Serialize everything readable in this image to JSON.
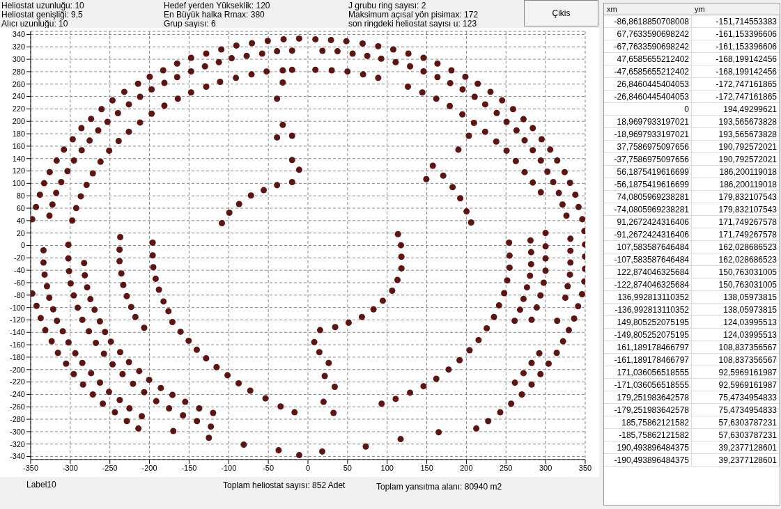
{
  "chart_data": [
    {
      "type": "scatter",
      "color": "#5c1414",
      "marker": "circle",
      "grid": true,
      "legend": false,
      "xlim": [
        -350,
        350
      ],
      "xticks": [
        -350,
        -300,
        -250,
        -200,
        -150,
        -100,
        -50,
        0,
        50,
        100,
        150,
        200,
        250,
        300,
        350
      ],
      "ylim": [
        -345,
        345
      ],
      "yticks": [
        -340,
        -320,
        -300,
        -280,
        -260,
        -240,
        -220,
        -200,
        -180,
        -160,
        -140,
        -120,
        -100,
        -80,
        -60,
        -40,
        -20,
        0,
        20,
        40,
        60,
        80,
        100,
        120,
        140,
        160,
        180,
        200,
        220,
        240,
        260,
        280,
        300,
        320,
        340
      ],
      "annotations": [
        "Heliostat uzunluğu: 10",
        "Heliostat genişliği: 9,5",
        "Alıcı uzunluğu: 10",
        "Hedef yerden Yükseklik: 120",
        "En Büyük halka Rmax: 380",
        "Grup sayısı: 6",
        "J grubu ring sayısı: 2",
        "Maksimum açısal yön pisimax: 172",
        "son ringdeki heliostat sayısı u: 123",
        "Çikis",
        "Label10",
        "Toplam heliostat sayısı: 852 Adet",
        "Toplam yansıtma alanı: 80940 m2"
      ],
      "x": [
        -30.7,
        -11.1,
        -50.7,
        -70.7,
        -90.3,
        -109.4,
        -128.4,
        -147.5,
        -165.1,
        -182.7,
        -199.7,
        -214.4,
        -231.8,
        -246.7,
        -260.5,
        -273.7,
        -285.9,
        -296.9,
        -308,
        -317.2,
        -326,
        -333,
        -338.3,
        -343.3,
        -348,
        -39,
        -20,
        -57.8,
        -77.3,
        -96.3,
        -112.4,
        -130,
        -147.5,
        -165.1,
        -181.2,
        -197.3,
        -211.9,
        -226,
        -239.8,
        -253,
        -264.7,
        -275.6,
        -285.6,
        -295.3,
        -303.5,
        -311.4,
        -317.8,
        -322.5,
        -326.3,
        -31.8,
        -20,
        -52.2,
        -71.2,
        -90.9,
        -110.9,
        -128.4,
        -147.5,
        -164.2,
        -181.2,
        -197.3,
        -211.9,
        -226,
        -238.9,
        -250.9,
        -261.8,
        -271.5,
        -279.4,
        -286.7,
        -292.5,
        -297.5,
        -31.8,
        -39,
        -31.8,
        -20,
        -39,
        -20,
        -11.1,
        -20,
        -39,
        -55.8,
        -71.9,
        -86.9,
        -99.2,
        -108.6,
        9.4,
        29.1,
        48.5,
        69,
        88.7,
        107.7,
        126.8,
        145.9,
        163.5,
        181.1,
        198.7,
        214.3,
        230.4,
        245.1,
        258.9,
        272.1,
        283.8,
        295,
        305.8,
        314.6,
        324,
        330.8,
        337.5,
        341.6,
        346.3,
        18.3,
        37.3,
        56.4,
        74.9,
        92.5,
        110.7,
        128.9,
        145.9,
        163.5,
        179.6,
        195.2,
        210.4,
        223.7,
        238.3,
        250.7,
        263.3,
        273.5,
        283.8,
        294,
        302.3,
        309.6,
        316.7,
        321.3,
        326.3,
        9.4,
        30,
        49.9,
        69.6,
        88.7,
        126.2,
        144.4,
        162,
        179,
        194.9,
        209.6,
        223.7,
        237.7,
        250.7,
        262.4,
        273.5,
        283.8,
        294,
        203.1,
        189.9,
        149.4,
        157.6,
        170.8,
        182.6,
        192.2,
        200.2,
        206,
        -347.9,
        -342.6,
        -337.3,
        -331.5,
        -323.5,
        -315.6,
        -305.3,
        -295.6,
        -283.9,
        -271.5,
        -258.9,
        -243.7,
        -228.6,
        -214,
        -333.8,
        -333.8,
        -332.4,
        -329.4,
        -326.5,
        -321.5,
        -316.8,
        -309.5,
        -302.2,
        -293.6,
        -284.8,
        -273.7,
        -262.5,
        -251.1,
        -237.6,
        -225.3,
        -209.7,
        -302.4,
        -302.4,
        -301.5,
        -299.5,
        -295.6,
        -290.6,
        -284.8,
        -276.5,
        -267.7,
        -257.5,
        -246.6,
        -234,
        -220.8,
        -206.7,
        -191.5,
        -175.3,
        -157.7,
        -140.1,
        -122.5,
        -282.5,
        -281.6,
        -278.7,
        -274.6,
        -269.3,
        -262.6,
        -256.1,
        -248.7,
        -237,
        -225.9,
        -213,
        -200.4,
        -185.7,
        -171,
        -154.9,
        -137.3,
        -119.7,
        -236.9,
        -237.8,
        -237.8,
        -235.5,
        -233.1,
        -228.7,
        -223.1,
        -217.8,
        -206.7,
        -196,
        -196,
        -195.2,
        -192.2,
        -188.1,
        -182.3,
        -176.1,
        -171.1,
        -160.8,
        -150.6,
        -140.3,
        -128.5,
        -115.3,
        -101.5,
        -87.5,
        -72.8,
        -53.6,
        -34.5,
        -16.9,
        348.9,
        349.8,
        349.8,
        349.8,
        348.9,
        346,
        341,
        336,
        329.3,
        322,
        314,
        303.8,
        293.5,
        282.3,
        270,
        256.5,
        242.7,
        227.5,
        212.5,
        331.3,
        331.3,
        331.3,
        330.7,
        327.8,
        324.9,
        314.6,
        299.9,
        299.9,
        299.9,
        299.9,
        297.6,
        293.5,
        288.8,
        282.3,
        292,
        282.3,
        272.1,
        261.2,
        280.9,
        281.7,
        281.7,
        280.3,
        276.5,
        272.1,
        267.7,
        260.9,
        253.9,
        254.5,
        254.5,
        251.5,
        247.7,
        241.2,
        234.8,
        225.7,
        215.4,
        204,
        191.4,
        177.6,
        162,
        145.9,
        128.9,
        110.7,
        93,
        8,
        14.4,
        26.2,
        21.2,
        33.8,
        19.7,
        32.3,
        15.3,
        34.4,
        51.4,
        68.1,
        82.8,
        94.5,
        106.3,
        113,
        118,
        118,
        117.4,
        113.6,
        -11,
        18,
        -37,
        73,
        -81,
        117,
        -125,
        165,
        -170
      ],
      "values": [
        332.2,
        333.3,
        329.6,
        325.9,
        322.1,
        315.8,
        309.1,
        302.4,
        293.1,
        282.2,
        271.8,
        260.6,
        247.5,
        233.8,
        219.6,
        203.9,
        189,
        171.1,
        154.4,
        136.8,
        118.2,
        100.3,
        81.7,
        61.9,
        42.2,
        312.9,
        313.9,
        309.1,
        305.4,
        301.7,
        295.4,
        288.6,
        280.5,
        271.2,
        261.9,
        251.4,
        239.6,
        227.3,
        213.2,
        199.2,
        185.4,
        169,
        153.4,
        136.8,
        119.7,
        102.1,
        84.6,
        65.9,
        48,
        282.2,
        283,
        280.3,
        275.6,
        270,
        263.7,
        255.8,
        246.5,
        236.5,
        225.3,
        212.3,
        198.1,
        183.2,
        168.3,
        152.7,
        134.8,
        116.1,
        97.5,
        79.2,
        60.2,
        40.1,
        262.5,
        236.4,
        194.3,
        176.7,
        174,
        137.6,
        121.9,
        102.1,
        97.2,
        89.1,
        80.5,
        66.8,
        52.7,
        35.9,
        332.2,
        331,
        329.1,
        325.4,
        321,
        315.8,
        309.1,
        302.4,
        293.1,
        282.2,
        271.8,
        260.6,
        247.5,
        233.8,
        219.6,
        203.5,
        189,
        171.1,
        154.4,
        136.8,
        118.2,
        101,
        81.7,
        61.9,
        42.2,
        313.6,
        312.9,
        309.1,
        305.4,
        301,
        295.4,
        288.6,
        280.5,
        271.2,
        261.5,
        251.4,
        239.6,
        227.3,
        213.5,
        199.2,
        185.4,
        169.3,
        153.4,
        136.8,
        118.9,
        102.1,
        84.6,
        65.9,
        48,
        283,
        282.2,
        280.3,
        275.6,
        270,
        255.8,
        246.5,
        236.5,
        224.6,
        211.2,
        197.4,
        183.2,
        167.5,
        152.7,
        136,
        118.2,
        101.4,
        85.7,
        176.7,
        154.4,
        106.9,
        128.5,
        112.5,
        93.9,
        76,
        54.9,
        37,
        -77.5,
        -97.3,
        -117.1,
        -136.4,
        -154.4,
        -173,
        -190.5,
        -207.3,
        -224.1,
        -240.1,
        -255,
        -268.8,
        -283,
        -294.9,
        -7.8,
        -27.6,
        -47,
        -65.6,
        -84.3,
        -102.9,
        -121.5,
        -138.3,
        -156.2,
        -173.7,
        -189.4,
        -205.8,
        -221,
        -236,
        -249.1,
        -262.5,
        -275.2,
        1.1,
        -20.9,
        -41.4,
        -61.1,
        -80.6,
        -100.3,
        -119.7,
        -138.3,
        -157,
        -174.5,
        -191.6,
        -207.3,
        -222.9,
        -236.4,
        -250.9,
        -262.5,
        -273.7,
        -283,
        -291.9,
        -28.3,
        -48.1,
        -67.5,
        -86.5,
        -103.6,
        -122.3,
        -139.4,
        -155,
        -171.9,
        -187.9,
        -202.4,
        -216.6,
        -229.6,
        -240.8,
        -252,
        -262.5,
        -269.9,
        13.4,
        -6.7,
        -25.3,
        -45.1,
        -63.7,
        -81.6,
        -99.2,
        -115.2,
        -132.7,
        4.5,
        -16,
        -35,
        -53.7,
        -71.2,
        -90.2,
        -105.9,
        -123.4,
        -139,
        -153.6,
        -168.1,
        -181.9,
        -196.1,
        -209.1,
        -222.1,
        -234,
        -246.4,
        -259.4,
        -268.8,
        23.2,
        1.5,
        -17.9,
        -37.6,
        -58.1,
        -78.6,
        -98,
        -117.8,
        -136.4,
        -154.4,
        -173,
        -190.5,
        -207.3,
        -224.1,
        -240.1,
        -255,
        -268.8,
        -283,
        -294.9,
        10.8,
        -8.6,
        -27.6,
        -47,
        -65.6,
        -84.3,
        -121.5,
        20.1,
        -1.5,
        -20.9,
        -40.6,
        -60,
        -80.5,
        -100,
        -119.7,
        -173.7,
        -189.4,
        -205.8,
        -221.1,
        8.2,
        -10.8,
        -30.2,
        -48.8,
        -67.5,
        -86.2,
        -103.6,
        -121.5,
        4.5,
        -16.4,
        -35.8,
        -56.3,
        -76.8,
        -96.6,
        -115.2,
        -133.5,
        -152.5,
        -168.9,
        -184.9,
        -199.9,
        -214.8,
        -226.8,
        -237.2,
        -247.3,
        -255,
        -155.8,
        -171.9,
        -189.4,
        -210.3,
        -227.8,
        -252,
        -269.9,
        -136.4,
        -131.5,
        -124.4,
        -115.2,
        -102.9,
        -89.1,
        -73,
        -55.5,
        -36.9,
        -18.2,
        0.4,
        18.3,
        -337.8,
        -332,
        -330,
        -324,
        -321,
        -312,
        -310,
        -301,
        -299
      ]
    },
    {
      "type": "other",
      "categories": [
        "xm",
        "ym"
      ],
      "annotations": [
        "-86,8618850708008",
        "-151,714553383",
        "67,7633590698242",
        "-161,153396606",
        "-67,7633590698242",
        "-161,153396606",
        "47,6585655212402",
        "-168,199142456",
        "-47,6585655212402",
        "-168,199142456",
        "26,8460445404053",
        "-172,747161865",
        "-26,8460445404053",
        "-172,747161865",
        "0",
        "194,49299621",
        "18,9697933197021",
        "193,565673828",
        "-18,9697933197021",
        "193,565673828",
        "37,7586975097656",
        "190,792572021",
        "-37,7586975097656",
        "190,792572021",
        "56,1875419616699",
        "186,200119018",
        "-56,1875419616699",
        "186,200119018",
        "74,0805969238281",
        "179,832107543",
        "-74,0805969238281",
        "179,832107543",
        "91,2672424316406",
        "171,749267578",
        "-91,2672424316406",
        "171,749267578",
        "107,583587646484",
        "162,028686523",
        "-107,583587646484",
        "162,028686523",
        "122,874046325684",
        "150,763031005",
        "-122,874046325684",
        "150,763031005",
        "136,992813110352",
        "138,05973815",
        "-136,992813110352",
        "138,05973815",
        "149,805252075195",
        "124,03995513",
        "-149,805252075195",
        "124,03995513",
        "161,189178466797",
        "108,837356567",
        "-161,189178466797",
        "108,837356567",
        "171,036056518555",
        "92,5969161987",
        "-171,036056518555",
        "92,5969161987",
        "179,251983642578",
        "75,4734954833",
        "-179,251983642578",
        "75,4734954833",
        "185,75862121582",
        "57,6303787231",
        "-185,75862121582",
        "57,6303787231",
        "190,493896484375",
        "39,2377128601",
        "-190,493896484375",
        "39,2377128601"
      ]
    }
  ]
}
